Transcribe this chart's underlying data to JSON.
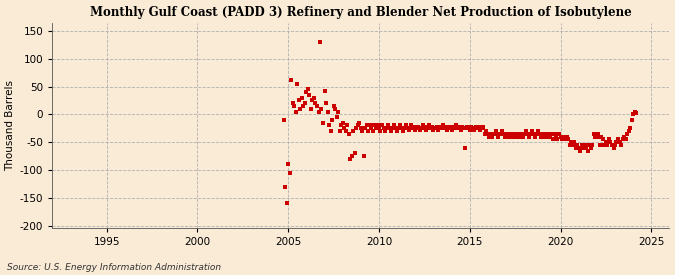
{
  "title": "Monthly Gulf Coast (PADD 3) Refinery and Blender Net Production of Isobutylene",
  "ylabel": "Thousand Barrels",
  "source": "Source: U.S. Energy Information Administration",
  "background_color": "#faebd7",
  "dot_color": "#cc0000",
  "xlim": [
    1992.0,
    2026.0
  ],
  "ylim": [
    -205,
    165
  ],
  "yticks": [
    -200,
    -150,
    -100,
    -50,
    0,
    50,
    100,
    150
  ],
  "xticks": [
    1995,
    2000,
    2005,
    2010,
    2015,
    2020,
    2025
  ],
  "data_points": [
    [
      2004.75,
      -10
    ],
    [
      2004.83,
      -130
    ],
    [
      2004.92,
      -160
    ],
    [
      2005.0,
      -90
    ],
    [
      2005.08,
      -105
    ],
    [
      2005.17,
      62
    ],
    [
      2005.25,
      20
    ],
    [
      2005.33,
      15
    ],
    [
      2005.42,
      5
    ],
    [
      2005.5,
      55
    ],
    [
      2005.58,
      25
    ],
    [
      2005.67,
      10
    ],
    [
      2005.75,
      30
    ],
    [
      2005.83,
      15
    ],
    [
      2005.92,
      20
    ],
    [
      2006.0,
      40
    ],
    [
      2006.08,
      45
    ],
    [
      2006.17,
      35
    ],
    [
      2006.25,
      10
    ],
    [
      2006.33,
      25
    ],
    [
      2006.42,
      30
    ],
    [
      2006.5,
      20
    ],
    [
      2006.58,
      15
    ],
    [
      2006.67,
      5
    ],
    [
      2006.75,
      130
    ],
    [
      2006.83,
      10
    ],
    [
      2006.92,
      -15
    ],
    [
      2007.0,
      42
    ],
    [
      2007.08,
      20
    ],
    [
      2007.17,
      5
    ],
    [
      2007.25,
      -20
    ],
    [
      2007.33,
      -30
    ],
    [
      2007.42,
      -10
    ],
    [
      2007.5,
      15
    ],
    [
      2007.58,
      10
    ],
    [
      2007.67,
      -5
    ],
    [
      2007.75,
      5
    ],
    [
      2007.83,
      -30
    ],
    [
      2007.92,
      -20
    ],
    [
      2008.0,
      -15
    ],
    [
      2008.08,
      -25
    ],
    [
      2008.17,
      -30
    ],
    [
      2008.25,
      -20
    ],
    [
      2008.33,
      -35
    ],
    [
      2008.42,
      -80
    ],
    [
      2008.5,
      -75
    ],
    [
      2008.58,
      -30
    ],
    [
      2008.67,
      -70
    ],
    [
      2008.75,
      -25
    ],
    [
      2008.83,
      -20
    ],
    [
      2008.92,
      -15
    ],
    [
      2009.0,
      -25
    ],
    [
      2009.08,
      -30
    ],
    [
      2009.17,
      -75
    ],
    [
      2009.25,
      -25
    ],
    [
      2009.33,
      -20
    ],
    [
      2009.42,
      -30
    ],
    [
      2009.5,
      -20
    ],
    [
      2009.58,
      -25
    ],
    [
      2009.67,
      -30
    ],
    [
      2009.75,
      -20
    ],
    [
      2009.83,
      -25
    ],
    [
      2009.92,
      -20
    ],
    [
      2010.0,
      -25
    ],
    [
      2010.08,
      -30
    ],
    [
      2010.17,
      -20
    ],
    [
      2010.25,
      -25
    ],
    [
      2010.33,
      -30
    ],
    [
      2010.42,
      -25
    ],
    [
      2010.5,
      -20
    ],
    [
      2010.58,
      -25
    ],
    [
      2010.67,
      -30
    ],
    [
      2010.75,
      -25
    ],
    [
      2010.83,
      -20
    ],
    [
      2010.92,
      -25
    ],
    [
      2011.0,
      -30
    ],
    [
      2011.08,
      -25
    ],
    [
      2011.17,
      -20
    ],
    [
      2011.25,
      -25
    ],
    [
      2011.33,
      -30
    ],
    [
      2011.42,
      -25
    ],
    [
      2011.5,
      -20
    ],
    [
      2011.58,
      -25
    ],
    [
      2011.67,
      -28
    ],
    [
      2011.75,
      -20
    ],
    [
      2011.83,
      -25
    ],
    [
      2011.92,
      -22
    ],
    [
      2012.0,
      -28
    ],
    [
      2012.08,
      -25
    ],
    [
      2012.17,
      -22
    ],
    [
      2012.25,
      -28
    ],
    [
      2012.33,
      -25
    ],
    [
      2012.42,
      -20
    ],
    [
      2012.5,
      -25
    ],
    [
      2012.58,
      -28
    ],
    [
      2012.67,
      -22
    ],
    [
      2012.75,
      -20
    ],
    [
      2012.83,
      -25
    ],
    [
      2012.92,
      -22
    ],
    [
      2013.0,
      -28
    ],
    [
      2013.08,
      -25
    ],
    [
      2013.17,
      -22
    ],
    [
      2013.25,
      -28
    ],
    [
      2013.33,
      -22
    ],
    [
      2013.42,
      -25
    ],
    [
      2013.5,
      -20
    ],
    [
      2013.58,
      -25
    ],
    [
      2013.67,
      -22
    ],
    [
      2013.75,
      -28
    ],
    [
      2013.83,
      -22
    ],
    [
      2013.92,
      -25
    ],
    [
      2014.0,
      -28
    ],
    [
      2014.08,
      -22
    ],
    [
      2014.17,
      -25
    ],
    [
      2014.25,
      -20
    ],
    [
      2014.33,
      -25
    ],
    [
      2014.42,
      -22
    ],
    [
      2014.5,
      -28
    ],
    [
      2014.58,
      -22
    ],
    [
      2014.67,
      -25
    ],
    [
      2014.75,
      -60
    ],
    [
      2014.83,
      -22
    ],
    [
      2014.92,
      -25
    ],
    [
      2015.0,
      -28
    ],
    [
      2015.08,
      -22
    ],
    [
      2015.17,
      -25
    ],
    [
      2015.25,
      -28
    ],
    [
      2015.33,
      -22
    ],
    [
      2015.42,
      -25
    ],
    [
      2015.5,
      -22
    ],
    [
      2015.58,
      -28
    ],
    [
      2015.67,
      -25
    ],
    [
      2015.75,
      -22
    ],
    [
      2015.83,
      -35
    ],
    [
      2015.92,
      -30
    ],
    [
      2016.0,
      -35
    ],
    [
      2016.08,
      -40
    ],
    [
      2016.17,
      -35
    ],
    [
      2016.25,
      -40
    ],
    [
      2016.33,
      -35
    ],
    [
      2016.42,
      -30
    ],
    [
      2016.5,
      -35
    ],
    [
      2016.58,
      -40
    ],
    [
      2016.67,
      -35
    ],
    [
      2016.75,
      -30
    ],
    [
      2016.83,
      -35
    ],
    [
      2016.92,
      -40
    ],
    [
      2017.0,
      -35
    ],
    [
      2017.08,
      -40
    ],
    [
      2017.17,
      -35
    ],
    [
      2017.25,
      -40
    ],
    [
      2017.33,
      -35
    ],
    [
      2017.42,
      -40
    ],
    [
      2017.5,
      -35
    ],
    [
      2017.58,
      -40
    ],
    [
      2017.67,
      -35
    ],
    [
      2017.75,
      -40
    ],
    [
      2017.83,
      -35
    ],
    [
      2017.92,
      -40
    ],
    [
      2018.0,
      -35
    ],
    [
      2018.08,
      -30
    ],
    [
      2018.17,
      -35
    ],
    [
      2018.25,
      -40
    ],
    [
      2018.33,
      -35
    ],
    [
      2018.42,
      -30
    ],
    [
      2018.5,
      -35
    ],
    [
      2018.58,
      -40
    ],
    [
      2018.67,
      -35
    ],
    [
      2018.75,
      -30
    ],
    [
      2018.83,
      -35
    ],
    [
      2018.92,
      -40
    ],
    [
      2019.0,
      -35
    ],
    [
      2019.08,
      -40
    ],
    [
      2019.17,
      -35
    ],
    [
      2019.25,
      -40
    ],
    [
      2019.33,
      -35
    ],
    [
      2019.42,
      -40
    ],
    [
      2019.5,
      -35
    ],
    [
      2019.58,
      -45
    ],
    [
      2019.67,
      -35
    ],
    [
      2019.75,
      -40
    ],
    [
      2019.83,
      -45
    ],
    [
      2019.92,
      -35
    ],
    [
      2020.0,
      -40
    ],
    [
      2020.08,
      -45
    ],
    [
      2020.17,
      -40
    ],
    [
      2020.25,
      -45
    ],
    [
      2020.33,
      -40
    ],
    [
      2020.42,
      -45
    ],
    [
      2020.5,
      -55
    ],
    [
      2020.58,
      -50
    ],
    [
      2020.67,
      -55
    ],
    [
      2020.75,
      -50
    ],
    [
      2020.83,
      -60
    ],
    [
      2020.92,
      -55
    ],
    [
      2021.0,
      -60
    ],
    [
      2021.08,
      -65
    ],
    [
      2021.17,
      -55
    ],
    [
      2021.25,
      -60
    ],
    [
      2021.33,
      -55
    ],
    [
      2021.42,
      -60
    ],
    [
      2021.5,
      -65
    ],
    [
      2021.58,
      -55
    ],
    [
      2021.67,
      -60
    ],
    [
      2021.75,
      -55
    ],
    [
      2021.83,
      -35
    ],
    [
      2021.92,
      -40
    ],
    [
      2022.0,
      -40
    ],
    [
      2022.08,
      -35
    ],
    [
      2022.17,
      -55
    ],
    [
      2022.25,
      -40
    ],
    [
      2022.33,
      -45
    ],
    [
      2022.42,
      -55
    ],
    [
      2022.5,
      -50
    ],
    [
      2022.58,
      -55
    ],
    [
      2022.67,
      -45
    ],
    [
      2022.75,
      -50
    ],
    [
      2022.83,
      -55
    ],
    [
      2022.92,
      -60
    ],
    [
      2023.0,
      -55
    ],
    [
      2023.08,
      -50
    ],
    [
      2023.17,
      -45
    ],
    [
      2023.25,
      -50
    ],
    [
      2023.33,
      -55
    ],
    [
      2023.42,
      -45
    ],
    [
      2023.5,
      -40
    ],
    [
      2023.58,
      -45
    ],
    [
      2023.67,
      -35
    ],
    [
      2023.75,
      -30
    ],
    [
      2023.83,
      -25
    ],
    [
      2023.92,
      -10
    ],
    [
      2024.0,
      0
    ],
    [
      2024.08,
      5
    ],
    [
      2024.17,
      2
    ]
  ]
}
